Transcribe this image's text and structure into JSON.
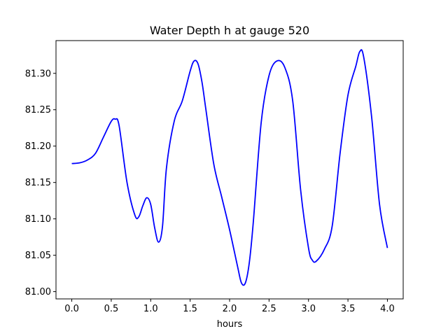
{
  "chart_data": {
    "type": "line",
    "title": "Water Depth h at gauge 520",
    "xlabel": "hours",
    "ylabel": "",
    "xlim": [
      -0.2,
      4.2
    ],
    "ylim": [
      80.99,
      81.345
    ],
    "xticks": [
      0.0,
      0.5,
      1.0,
      1.5,
      2.0,
      2.5,
      3.0,
      3.5,
      4.0
    ],
    "xtick_labels": [
      "0.0",
      "0.5",
      "1.0",
      "1.5",
      "2.0",
      "2.5",
      "3.0",
      "3.5",
      "4.0"
    ],
    "yticks": [
      81.0,
      81.05,
      81.1,
      81.15,
      81.2,
      81.25,
      81.3
    ],
    "ytick_labels": [
      "81.00",
      "81.05",
      "81.10",
      "81.15",
      "81.20",
      "81.25",
      "81.30"
    ],
    "grid": false,
    "series": [
      {
        "color": "#0000ff",
        "x": [
          0.0,
          0.1,
          0.2,
          0.3,
          0.4,
          0.5,
          0.55,
          0.6,
          0.7,
          0.8,
          0.85,
          0.9,
          0.95,
          1.0,
          1.05,
          1.1,
          1.15,
          1.2,
          1.3,
          1.4,
          1.5,
          1.55,
          1.6,
          1.65,
          1.7,
          1.8,
          1.9,
          2.0,
          2.1,
          2.15,
          2.2,
          2.25,
          2.3,
          2.4,
          2.5,
          2.6,
          2.7,
          2.8,
          2.9,
          3.0,
          3.05,
          3.1,
          3.2,
          3.3,
          3.4,
          3.5,
          3.6,
          3.65,
          3.7,
          3.8,
          3.9,
          4.0
        ],
        "y": [
          81.176,
          81.177,
          81.181,
          81.19,
          81.212,
          81.234,
          81.237,
          81.228,
          81.15,
          81.105,
          81.103,
          81.118,
          81.129,
          81.12,
          81.088,
          81.068,
          81.09,
          81.17,
          81.235,
          81.262,
          81.303,
          81.317,
          81.313,
          81.288,
          81.25,
          81.175,
          81.13,
          81.085,
          81.035,
          81.012,
          81.012,
          81.04,
          81.095,
          81.232,
          81.297,
          81.317,
          81.308,
          81.262,
          81.14,
          81.06,
          81.043,
          81.042,
          81.058,
          81.09,
          81.19,
          81.27,
          81.31,
          81.33,
          81.322,
          81.24,
          81.12,
          81.06
        ]
      }
    ]
  }
}
